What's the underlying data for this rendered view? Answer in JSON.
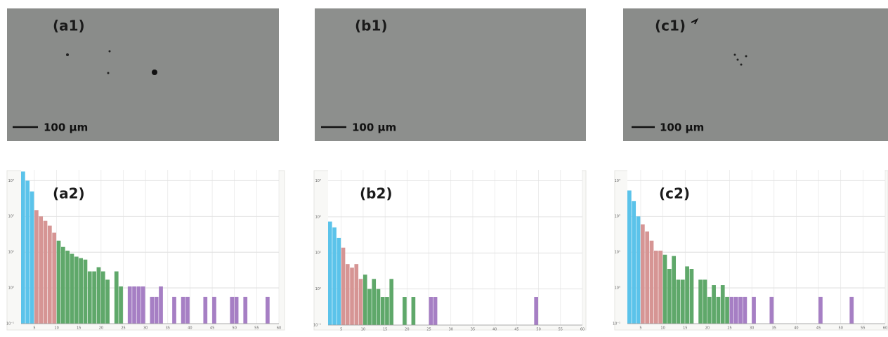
{
  "panels": [
    {
      "label": "(a1)",
      "scale_bar": "100 µm"
    },
    {
      "label": "(b1)",
      "scale_bar": "100 µm"
    },
    {
      "label": "(c1)",
      "scale_bar": "100 µm"
    }
  ],
  "chart_data": [
    {
      "type": "histogram",
      "label": "(a2)",
      "log_y": true,
      "grid": true,
      "bins": [
        2,
        3,
        4,
        5,
        6,
        7,
        8,
        9,
        10,
        11,
        12,
        13,
        14,
        15,
        16,
        17,
        18,
        19,
        20,
        21,
        22,
        23,
        24,
        25,
        26,
        27,
        28,
        29,
        30,
        31,
        32,
        33,
        34,
        35,
        36,
        37,
        38,
        39,
        40,
        41,
        42,
        43,
        44,
        45,
        46,
        47,
        48,
        49,
        50,
        51,
        52,
        53,
        54,
        55,
        56,
        57,
        58
      ],
      "values": [
        1800,
        1000,
        500,
        150,
        100,
        75,
        55,
        35,
        21,
        14,
        11,
        9,
        7.5,
        6.8,
        6.2,
        2.9,
        2.9,
        3.8,
        2.9,
        1.7,
        null,
        2.9,
        1.1,
        null,
        1.1,
        1.1,
        1.1,
        1.1,
        null,
        0.56,
        0.56,
        1.1,
        null,
        null,
        0.56,
        null,
        0.56,
        0.56,
        null,
        null,
        null,
        0.56,
        null,
        0.56,
        null,
        null,
        null,
        0.56,
        0.56,
        null,
        0.56,
        null,
        null,
        null,
        null,
        0.56
      ],
      "color_breaks": [
        5,
        10,
        25
      ],
      "colors": [
        "#5bc3ea",
        "#d69594",
        "#5fa86a",
        "#a67fc4"
      ],
      "xlim": [
        2,
        60
      ],
      "xticks": [
        5,
        10,
        15,
        20,
        25,
        30,
        35,
        40,
        45,
        50,
        55,
        60
      ],
      "ylim": [
        0.1,
        2000
      ],
      "yticks": [
        {
          "value": 0.1,
          "label": "10⁻¹"
        },
        {
          "value": 1,
          "label": "10⁰"
        },
        {
          "value": 10,
          "label": "10¹"
        },
        {
          "value": 100,
          "label": "10²"
        },
        {
          "value": 1000,
          "label": "10³"
        }
      ]
    },
    {
      "type": "histogram",
      "label": "(b2)",
      "log_y": true,
      "grid": true,
      "bins": [
        2,
        3,
        4,
        5,
        6,
        7,
        8,
        9,
        10,
        11,
        12,
        13,
        14,
        15,
        16,
        17,
        18,
        19,
        20,
        21,
        22,
        23,
        24,
        25,
        26,
        27,
        28,
        29,
        30,
        31,
        32,
        33,
        34,
        35,
        36,
        37,
        38,
        39,
        40,
        41,
        42,
        43,
        44,
        45,
        46,
        47,
        48,
        49,
        50
      ],
      "values": [
        74,
        51,
        26,
        14,
        4.9,
        3.9,
        4.9,
        1.9,
        2.5,
        1.0,
        1.9,
        1.0,
        0.6,
        0.6,
        1.9,
        null,
        null,
        0.6,
        null,
        0.6,
        null,
        null,
        null,
        0.6,
        0.6,
        null,
        null,
        null,
        null,
        null,
        null,
        null,
        null,
        null,
        null,
        null,
        null,
        null,
        null,
        null,
        null,
        null,
        null,
        null,
        null,
        null,
        null,
        0.6
      ],
      "color_breaks": [
        5,
        10,
        25
      ],
      "colors": [
        "#5bc3ea",
        "#d69594",
        "#5fa86a",
        "#a67fc4"
      ],
      "xlim": [
        2,
        60
      ],
      "xticks": [
        5,
        10,
        15,
        20,
        25,
        30,
        35,
        40,
        45,
        50,
        55,
        60
      ],
      "ylim": [
        0.1,
        2000
      ],
      "yticks": [
        {
          "value": 0.1,
          "label": "10⁻¹"
        },
        {
          "value": 1,
          "label": "10⁰"
        },
        {
          "value": 10,
          "label": "10¹"
        },
        {
          "value": 100,
          "label": "10²"
        },
        {
          "value": 1000,
          "label": "10³"
        }
      ]
    },
    {
      "type": "histogram",
      "label": "(c2)",
      "log_y": true,
      "grid": true,
      "bins": [
        2,
        3,
        4,
        5,
        6,
        7,
        8,
        9,
        10,
        11,
        12,
        13,
        14,
        15,
        16,
        17,
        18,
        19,
        20,
        21,
        22,
        23,
        24,
        25,
        26,
        27,
        28,
        29,
        30,
        31,
        32,
        33,
        34,
        35,
        36,
        37,
        38,
        39,
        40,
        41,
        42,
        43,
        44,
        45,
        46,
        47,
        48,
        49,
        50,
        51,
        52,
        53
      ],
      "values": [
        530,
        270,
        100,
        60,
        38,
        21,
        11,
        11,
        8.5,
        3.4,
        7.8,
        1.7,
        1.7,
        4,
        3.4,
        null,
        1.7,
        1.7,
        0.56,
        1.2,
        0.56,
        1.2,
        0.56,
        0.56,
        0.56,
        0.56,
        0.56,
        null,
        0.56,
        null,
        null,
        null,
        0.56,
        null,
        null,
        null,
        null,
        null,
        null,
        null,
        null,
        null,
        null,
        0.56,
        null,
        null,
        null,
        null,
        null,
        null,
        0.56
      ],
      "color_breaks": [
        5,
        10,
        25
      ],
      "colors": [
        "#5bc3ea",
        "#d69594",
        "#5fa86a",
        "#a67fc4"
      ],
      "xlim": [
        2,
        60
      ],
      "xticks": [
        5,
        10,
        15,
        20,
        25,
        30,
        35,
        40,
        45,
        50,
        55,
        60
      ],
      "ylim": [
        0.1,
        2000
      ],
      "yticks": [
        {
          "value": 0.1,
          "label": "10⁻¹"
        },
        {
          "value": 1,
          "label": "10⁰"
        },
        {
          "value": 10,
          "label": "10¹"
        },
        {
          "value": 100,
          "label": "10²"
        },
        {
          "value": 1000,
          "label": "10³"
        }
      ]
    }
  ]
}
